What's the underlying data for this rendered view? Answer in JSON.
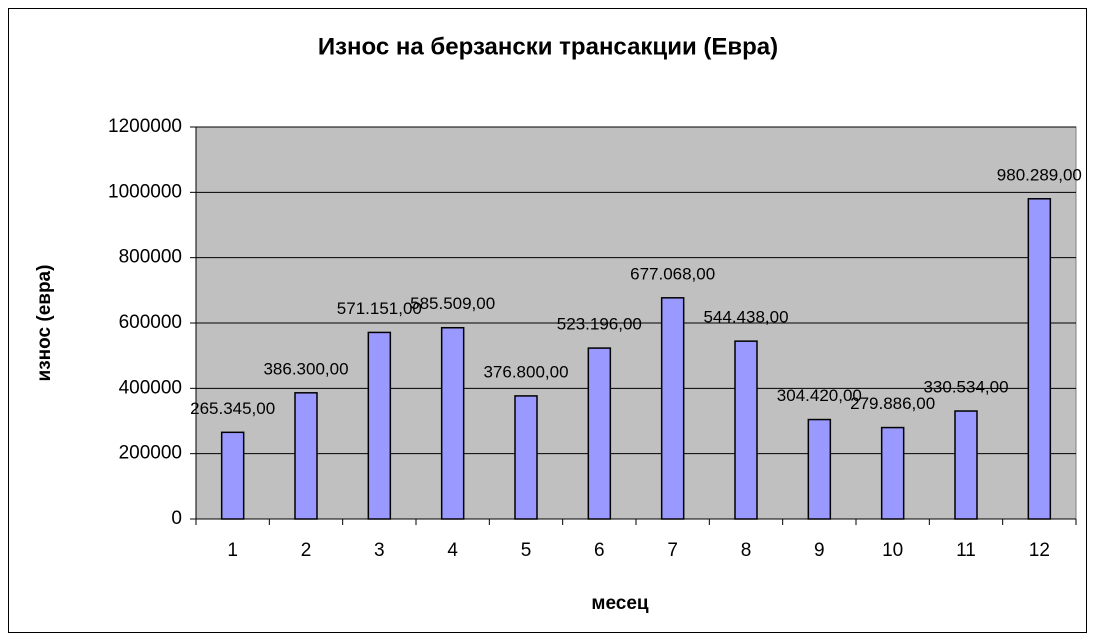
{
  "chart_data": {
    "type": "bar",
    "title": "Износ на берзански трансакции (Евра)",
    "x_label": "месец",
    "y_label": "износ (евра)",
    "categories": [
      "1",
      "2",
      "3",
      "4",
      "5",
      "6",
      "7",
      "8",
      "9",
      "10",
      "11",
      "12"
    ],
    "values": [
      265345,
      386300,
      571151,
      585509,
      376800,
      523196,
      677068,
      544438,
      304420,
      279886,
      330534,
      980289
    ],
    "value_labels": [
      "265.345,00",
      "386.300,00",
      "571.151,00",
      "585.509,00",
      "376.800,00",
      "523.196,00",
      "677.068,00",
      "544.438,00",
      "304.420,00",
      "279.886,00",
      "330.534,00",
      "980.289,00"
    ],
    "color": "#9999ff",
    "ylim": [
      0,
      1200000
    ],
    "yticks": [
      0,
      200000,
      400000,
      600000,
      800000,
      1000000,
      1200000
    ],
    "grid": true
  }
}
